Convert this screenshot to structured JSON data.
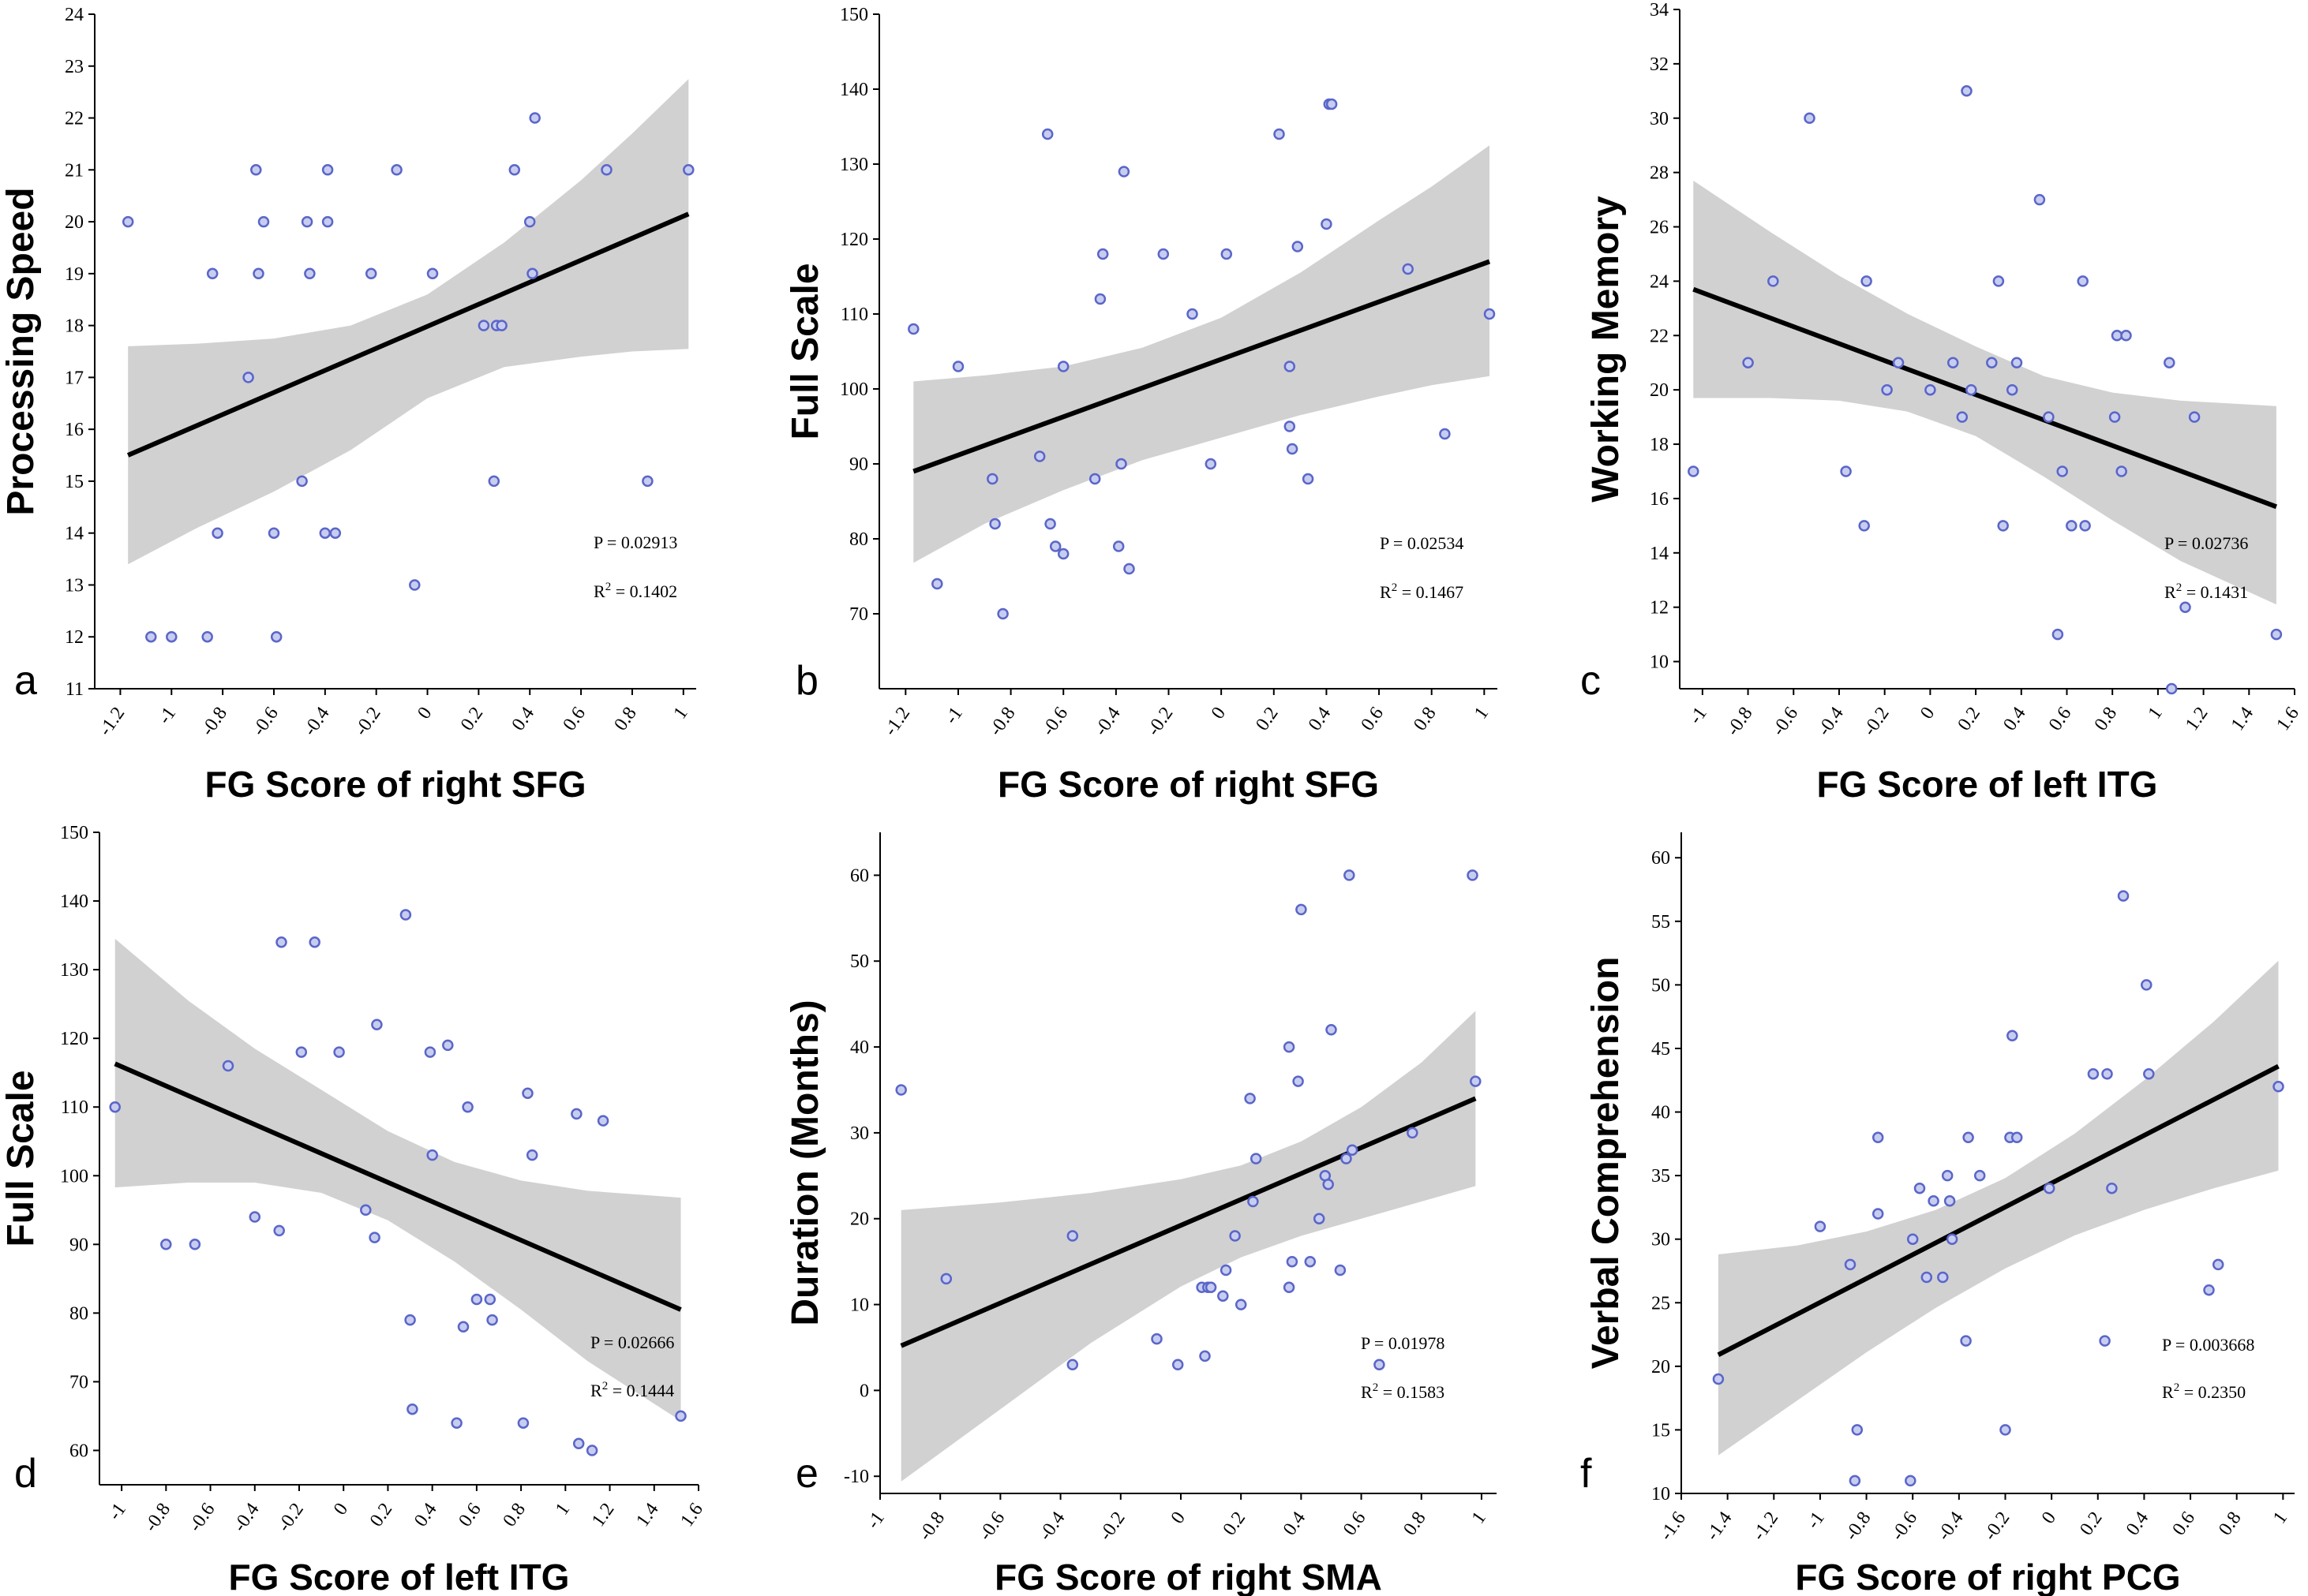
{
  "chart_data": [
    {
      "type": "scatter",
      "panel": "a",
      "xlabel": "FG Score of right SFG",
      "ylabel": "Processing Speed",
      "xlim": [
        -1.3,
        1.05
      ],
      "ylim": [
        11,
        24
      ],
      "xticks": [
        -1.2,
        -1,
        -0.8,
        -0.6,
        -0.4,
        -0.2,
        0,
        0.2,
        0.4,
        0.6,
        0.8,
        1
      ],
      "yticks": [
        11,
        12,
        13,
        14,
        15,
        16,
        17,
        18,
        19,
        20,
        21,
        22,
        23,
        24
      ],
      "points": {
        "x": [
          -1.17,
          -1.08,
          -1.0,
          -0.86,
          -0.84,
          -0.82,
          -0.7,
          -0.67,
          -0.66,
          -0.64,
          -0.6,
          -0.59,
          -0.49,
          -0.47,
          -0.46,
          -0.4,
          -0.39,
          -0.39,
          -0.36,
          -0.22,
          -0.12,
          -0.05,
          0.02,
          0.22,
          0.26,
          0.27,
          0.29,
          0.34,
          0.4,
          0.41,
          0.42,
          0.7,
          0.86,
          1.02
        ],
        "y": [
          20,
          12,
          12,
          12,
          19,
          14,
          17,
          21,
          19,
          20,
          14,
          12,
          15,
          20,
          19,
          14,
          20,
          21,
          14,
          19,
          21,
          13,
          19,
          18,
          15,
          18,
          18,
          21,
          20,
          19,
          22,
          21,
          15,
          21
        ]
      },
      "fit": {
        "x": [
          -1.17,
          1.02
        ],
        "y": [
          15.5,
          20.15
        ]
      },
      "band": {
        "x": [
          -1.17,
          -0.9,
          -0.6,
          -0.3,
          0.0,
          0.3,
          0.6,
          0.8,
          1.02
        ],
        "upper": [
          17.6,
          17.65,
          17.75,
          18.0,
          18.6,
          19.6,
          20.8,
          21.7,
          22.75
        ],
        "lower": [
          13.4,
          14.1,
          14.8,
          15.6,
          16.6,
          17.2,
          17.4,
          17.5,
          17.55
        ]
      },
      "stats": {
        "p": "P = 0.02913",
        "r2_prefix": "R",
        "r2_sup": "2",
        "r2_value": " = 0.1402"
      }
    },
    {
      "type": "scatter",
      "panel": "b",
      "xlabel": "FG Score of right SFG",
      "ylabel": "Full Scale",
      "xlim": [
        -1.3,
        1.05
      ],
      "ylim": [
        60,
        150
      ],
      "xticks": [
        -1.2,
        -1,
        -0.8,
        -0.6,
        -0.4,
        -0.2,
        0,
        0.2,
        0.4,
        0.6,
        0.8,
        1
      ],
      "yticks": [
        70,
        80,
        90,
        100,
        110,
        120,
        130,
        140,
        150
      ],
      "points": {
        "x": [
          -1.17,
          -1.08,
          -1.0,
          -0.87,
          -0.86,
          -0.83,
          -0.69,
          -0.66,
          -0.65,
          -0.63,
          -0.6,
          -0.6,
          -0.48,
          -0.46,
          -0.45,
          -0.39,
          -0.38,
          -0.37,
          -0.35,
          -0.22,
          -0.11,
          -0.04,
          0.02,
          0.22,
          0.26,
          0.26,
          0.27,
          0.29,
          0.33,
          0.4,
          0.41,
          0.42,
          0.71,
          0.85,
          1.02
        ],
        "y": [
          108,
          74,
          103,
          88,
          82,
          70,
          91,
          134,
          82,
          79,
          103,
          78,
          88,
          112,
          118,
          79,
          90,
          129,
          76,
          118,
          110,
          90,
          118,
          134,
          95,
          103,
          92,
          119,
          88,
          122,
          138,
          138,
          116,
          94,
          110
        ]
      },
      "fit": {
        "x": [
          -1.17,
          1.02
        ],
        "y": [
          89.0,
          117.0
        ]
      },
      "band": {
        "x": [
          -1.17,
          -0.9,
          -0.6,
          -0.3,
          0.0,
          0.3,
          0.6,
          0.8,
          1.02
        ],
        "upper": [
          101.0,
          101.8,
          103.0,
          105.5,
          109.5,
          115.5,
          122.5,
          127.0,
          132.5
        ],
        "lower": [
          76.8,
          82.0,
          86.5,
          90.5,
          93.5,
          96.5,
          99.0,
          100.5,
          101.7
        ]
      },
      "stats": {
        "p": "P = 0.02534",
        "r2_prefix": "R",
        "r2_sup": "2",
        "r2_value": " = 0.1467"
      }
    },
    {
      "type": "scatter",
      "panel": "c",
      "xlabel": "FG Score of left ITG",
      "ylabel": "Working Memory",
      "xlim": [
        -1.1,
        1.6
      ],
      "ylim": [
        9,
        34
      ],
      "xticks": [
        -1,
        -0.8,
        -0.6,
        -0.4,
        -0.2,
        0,
        0.2,
        0.4,
        0.6,
        0.8,
        1,
        1.2,
        1.4,
        1.6
      ],
      "yticks": [
        10,
        12,
        14,
        16,
        18,
        20,
        22,
        24,
        26,
        28,
        30,
        32,
        34
      ],
      "points": {
        "x": [
          -1.04,
          -0.8,
          -0.69,
          -0.53,
          -0.37,
          -0.29,
          -0.28,
          -0.19,
          -0.14,
          0.0,
          0.1,
          0.14,
          0.16,
          0.18,
          0.27,
          0.3,
          0.32,
          0.36,
          0.38,
          0.48,
          0.52,
          0.56,
          0.58,
          0.62,
          0.67,
          0.68,
          0.81,
          0.82,
          0.84,
          0.86,
          1.05,
          1.06,
          1.12,
          1.16,
          1.52
        ],
        "y": [
          17,
          21,
          24,
          30,
          17,
          15,
          24,
          20,
          21,
          20,
          21,
          19,
          31,
          20,
          21,
          24,
          15,
          20,
          21,
          27,
          19,
          11,
          17,
          15,
          24,
          15,
          19,
          22,
          17,
          22,
          21,
          9,
          12,
          19,
          11
        ]
      },
      "fit": {
        "x": [
          -1.04,
          1.52
        ],
        "y": [
          23.7,
          15.7
        ]
      },
      "band": {
        "x": [
          -1.04,
          -0.7,
          -0.4,
          -0.1,
          0.2,
          0.5,
          0.8,
          1.1,
          1.52
        ],
        "upper": [
          27.7,
          25.8,
          24.2,
          22.8,
          21.6,
          20.5,
          19.9,
          19.6,
          19.4
        ],
        "lower": [
          19.7,
          19.7,
          19.6,
          19.2,
          18.3,
          16.8,
          15.2,
          13.7,
          12.1
        ]
      },
      "stats": {
        "p": "P = 0.02736",
        "r2_prefix": "R",
        "r2_sup": "2",
        "r2_value": " = 0.1431"
      }
    },
    {
      "type": "scatter",
      "panel": "d",
      "xlabel": "FG Score of left ITG",
      "ylabel": "Full Scale",
      "xlim": [
        -1.1,
        1.6
      ],
      "ylim": [
        55,
        150
      ],
      "xticks": [
        -1,
        -0.8,
        -0.6,
        -0.4,
        -0.2,
        0,
        0.2,
        0.4,
        0.6,
        0.8,
        1,
        1.2,
        1.4,
        1.6
      ],
      "yticks": [
        60,
        70,
        80,
        90,
        100,
        110,
        120,
        130,
        140,
        150
      ],
      "points": {
        "x": [
          -1.03,
          -0.8,
          -0.67,
          -0.52,
          -0.4,
          -0.29,
          -0.28,
          -0.19,
          -0.13,
          -0.02,
          0.1,
          0.14,
          0.15,
          0.28,
          0.3,
          0.31,
          0.39,
          0.4,
          0.47,
          0.51,
          0.54,
          0.56,
          0.6,
          0.66,
          0.67,
          0.81,
          0.83,
          0.85,
          1.05,
          1.06,
          1.12,
          1.17,
          1.52
        ],
        "y": [
          110,
          90,
          90,
          116,
          94,
          92,
          134,
          118,
          134,
          118,
          95,
          91,
          122,
          138,
          79,
          66,
          118,
          103,
          119,
          64,
          78,
          110,
          82,
          82,
          79,
          64,
          112,
          103,
          109,
          61,
          60,
          108,
          65
        ]
      },
      "fit": {
        "x": [
          -1.03,
          1.52
        ],
        "y": [
          116.3,
          80.5
        ]
      },
      "band": {
        "x": [
          -1.03,
          -0.7,
          -0.4,
          -0.1,
          0.2,
          0.5,
          0.8,
          1.1,
          1.52
        ],
        "upper": [
          134.5,
          125.5,
          118.5,
          112.5,
          106.5,
          102.0,
          99.3,
          97.8,
          96.8
        ],
        "lower": [
          98.3,
          99.0,
          99.0,
          97.5,
          93.5,
          87.5,
          80.5,
          73.0,
          64.3
        ]
      },
      "stats": {
        "p": "P = 0.02666",
        "r2_prefix": "R",
        "r2_sup": "2",
        "r2_value": " = 0.1444"
      }
    },
    {
      "type": "scatter",
      "panel": "e",
      "xlabel": "FG Score of right SMA",
      "ylabel": "Duration (Months)",
      "xlim": [
        -1.0,
        1.05
      ],
      "ylim": [
        -12,
        65
      ],
      "xticks": [
        -1,
        -0.8,
        -0.6,
        -0.4,
        -0.2,
        0,
        0.2,
        0.4,
        0.6,
        0.8,
        1
      ],
      "yticks": [
        -10,
        0,
        10,
        20,
        30,
        40,
        50,
        60
      ],
      "points": {
        "x": [
          -0.93,
          -0.78,
          -0.36,
          -0.36,
          -0.08,
          -0.01,
          0.07,
          0.08,
          0.09,
          0.1,
          0.14,
          0.15,
          0.18,
          0.2,
          0.23,
          0.24,
          0.25,
          0.36,
          0.36,
          0.37,
          0.39,
          0.4,
          0.43,
          0.46,
          0.48,
          0.49,
          0.5,
          0.53,
          0.55,
          0.56,
          0.57,
          0.66,
          0.77,
          0.97,
          0.98
        ],
        "y": [
          35,
          13,
          18,
          3,
          6,
          3,
          12,
          4,
          12,
          12,
          11,
          14,
          18,
          10,
          34,
          22,
          27,
          40,
          12,
          15,
          36,
          56,
          15,
          20,
          25,
          24,
          42,
          14,
          27,
          60,
          28,
          3,
          30,
          60,
          36
        ]
      },
      "fit": {
        "x": [
          -0.93,
          0.98
        ],
        "y": [
          5.2,
          34.0
        ]
      },
      "band": {
        "x": [
          -0.93,
          -0.6,
          -0.3,
          0.0,
          0.2,
          0.4,
          0.6,
          0.8,
          0.98
        ],
        "upper": [
          21.0,
          21.9,
          23.0,
          24.6,
          26.2,
          29.0,
          33.0,
          38.2,
          44.2
        ],
        "lower": [
          -10.6,
          -2.2,
          5.5,
          12.1,
          15.5,
          18.0,
          20.0,
          22.0,
          23.8
        ]
      },
      "stats": {
        "p": "P = 0.01978",
        "r2_prefix": "R",
        "r2_sup": "2",
        "r2_value": " = 0.1583"
      }
    },
    {
      "type": "scatter",
      "panel": "f",
      "xlabel": "FG Score of right PCG",
      "ylabel": "Verbal Comprehension",
      "xlim": [
        -1.6,
        1.05
      ],
      "ylim": [
        10,
        62
      ],
      "xticks": [
        -1.6,
        -1.4,
        -1.2,
        -1,
        -0.8,
        -0.6,
        -0.4,
        -0.2,
        0,
        0.2,
        0.4,
        0.6,
        0.8,
        1
      ],
      "yticks": [
        10,
        15,
        20,
        25,
        30,
        35,
        40,
        45,
        50,
        55,
        60
      ],
      "points": {
        "x": [
          -1.44,
          -1.0,
          -0.87,
          -0.85,
          -0.84,
          -0.75,
          -0.75,
          -0.61,
          -0.6,
          -0.57,
          -0.54,
          -0.51,
          -0.47,
          -0.45,
          -0.44,
          -0.43,
          -0.37,
          -0.36,
          -0.31,
          -0.2,
          -0.18,
          -0.17,
          -0.15,
          -0.01,
          0.18,
          0.23,
          0.24,
          0.26,
          0.31,
          0.41,
          0.42,
          0.68,
          0.72,
          0.98
        ],
        "y": [
          19,
          31,
          28,
          11,
          15,
          38,
          32,
          11,
          30,
          34,
          27,
          33,
          27,
          35,
          33,
          30,
          22,
          38,
          35,
          15,
          38,
          46,
          38,
          34,
          43,
          22,
          43,
          34,
          57,
          50,
          43,
          26,
          28,
          42
        ]
      },
      "fit": {
        "x": [
          -1.44,
          0.98
        ],
        "y": [
          20.9,
          43.6
        ]
      },
      "band": {
        "x": [
          -1.44,
          -1.1,
          -0.8,
          -0.5,
          -0.2,
          0.1,
          0.4,
          0.7,
          0.98
        ],
        "upper": [
          28.8,
          29.5,
          30.6,
          32.3,
          34.8,
          38.3,
          42.5,
          47.1,
          51.9
        ],
        "lower": [
          13.0,
          17.3,
          21.1,
          24.6,
          27.7,
          30.3,
          32.3,
          34.0,
          35.4
        ]
      },
      "stats": {
        "p": "P = 0.003668",
        "r2_prefix": "R",
        "r2_sup": "2",
        "r2_value": " = 0.2350"
      }
    }
  ]
}
